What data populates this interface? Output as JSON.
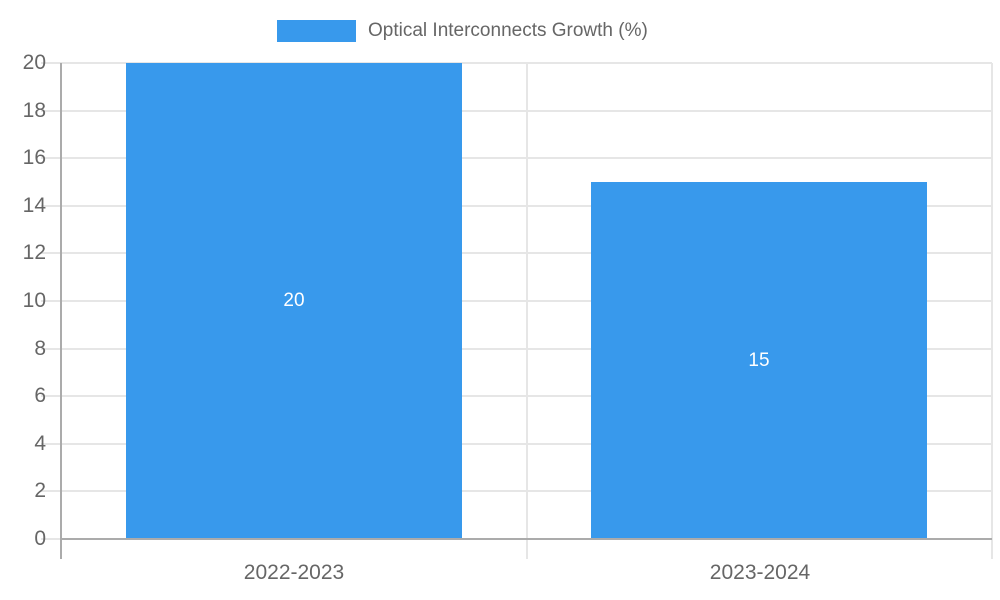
{
  "chart_data": {
    "type": "bar",
    "title": "",
    "series_name": "Optical Interconnects Growth (%)",
    "categories": [
      "2022-2023",
      "2023-2024"
    ],
    "values": [
      20,
      15
    ],
    "data_labels": [
      "20",
      "15"
    ],
    "xlabel": "",
    "ylabel": "",
    "ylim": [
      0,
      20
    ],
    "ytick_step": 2,
    "yticks": [
      0,
      2,
      4,
      6,
      8,
      10,
      12,
      14,
      16,
      18,
      20
    ],
    "grid": true,
    "legend_position": "top-center"
  },
  "colors": {
    "bar": "#3899EC",
    "grid_line": "#E6E6E6",
    "axis_line": "#ABABAB",
    "tick_label_text": "#666666",
    "legend_text": "#666666",
    "data_label_text": "#FFFFFF",
    "background": "#FFFFFF"
  }
}
